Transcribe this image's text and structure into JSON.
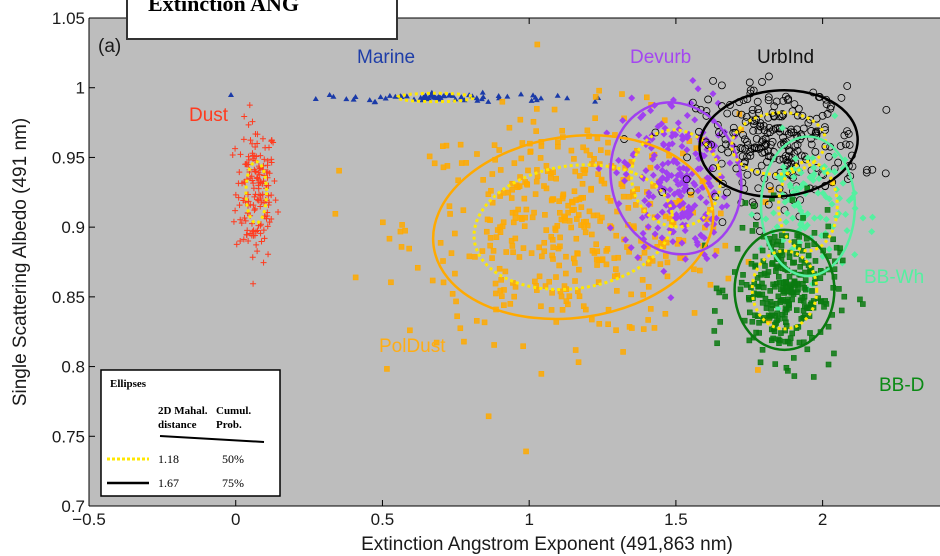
{
  "chart_data": {
    "type": "scatter",
    "title": "Extinction ANG",
    "panel_label": "(a)",
    "xlabel": "Extinction Angstrom Exponent (491,863 nm)",
    "ylabel": "Single Scattering Albedo (491 nm)",
    "xlim": [
      -0.5,
      2.4
    ],
    "ylim": [
      0.7,
      1.05
    ],
    "xticks": [
      -0.5,
      0,
      0.5,
      1,
      1.5,
      2
    ],
    "xtick_labels": [
      "−0.5",
      "0",
      "0.5",
      "1",
      "1.5",
      "2"
    ],
    "yticks": [
      0.7,
      0.75,
      0.8,
      0.85,
      0.9,
      0.95,
      1,
      1.05
    ],
    "ytick_labels": [
      "0.7",
      "0.75",
      "0.8",
      "0.85",
      "0.9",
      "0.95",
      "1",
      "1.05"
    ],
    "grid": false,
    "plot_background": "#bdbdbd",
    "series": [
      {
        "name": "Dust",
        "color": "#ff3b1f",
        "marker": "plus",
        "label_color": "#ff3b1f",
        "center": [
          0.07,
          0.925
        ],
        "spread": [
          0.035,
          0.025
        ],
        "n": 160,
        "ellipse50": {
          "rx": 0.035,
          "ry": 0.022,
          "angle": 0
        }
      },
      {
        "name": "Marine",
        "color": "#1a3aa8",
        "marker": "triangle",
        "label_color": "#1f3ea8",
        "center": [
          0.68,
          0.993
        ],
        "spread": [
          0.2,
          0.0015
        ],
        "n": 70,
        "ellipse50": {
          "rx": 0.13,
          "ry": 0.003,
          "angle": 0
        }
      },
      {
        "name": "PolDust",
        "color": "#ffaa00",
        "marker": "square",
        "label_color": "#ffad14",
        "center": [
          1.15,
          0.9
        ],
        "spread": [
          0.28,
          0.04
        ],
        "n": 420,
        "ellipse50": {
          "rx": 0.34,
          "ry": 0.044,
          "angle": -8
        },
        "ellipse75": {
          "rx": 0.48,
          "ry": 0.065,
          "angle": -8
        }
      },
      {
        "name": "Devurb",
        "color": "#a040f0",
        "marker": "diamond",
        "label_color": "#a447f0",
        "center": [
          1.5,
          0.935
        ],
        "spread": [
          0.09,
          0.03
        ],
        "n": 220,
        "ellipse50": {
          "rx": 0.15,
          "ry": 0.035,
          "angle": -15
        },
        "ellipse75": {
          "rx": 0.22,
          "ry": 0.055,
          "angle": -15
        }
      },
      {
        "name": "UrbInd",
        "color": "#000000",
        "marker": "circle",
        "label_color": "#111111",
        "center": [
          1.85,
          0.96
        ],
        "spread": [
          0.14,
          0.02
        ],
        "n": 260,
        "ellipse50": {
          "rx": 0.16,
          "ry": 0.022,
          "angle": -5
        },
        "ellipse75": {
          "rx": 0.27,
          "ry": 0.038,
          "angle": -5
        }
      },
      {
        "name": "BB-WhiteSmoke",
        "color": "#55f0a0",
        "marker": "diamond",
        "label_color": "#55f0a0",
        "center": [
          1.95,
          0.915
        ],
        "spread": [
          0.08,
          0.025
        ],
        "n": 110,
        "ellipse50": {
          "rx": 0.1,
          "ry": 0.032,
          "angle": 0
        },
        "ellipse75": {
          "rx": 0.16,
          "ry": 0.05,
          "angle": 0
        }
      },
      {
        "name": "BB-Dark",
        "color": "#0a7a10",
        "marker": "square",
        "label_color": "#0a8a14",
        "center": [
          1.87,
          0.855
        ],
        "spread": [
          0.09,
          0.025
        ],
        "n": 280,
        "ellipse50": {
          "rx": 0.11,
          "ry": 0.028,
          "angle": 0
        },
        "ellipse75": {
          "rx": 0.17,
          "ry": 0.043,
          "angle": 0
        }
      }
    ],
    "visible_group_labels": [
      "Dust",
      "Marine",
      "PolDust",
      "Devurb",
      "UrbInd",
      "BB-Wh",
      "BB-D"
    ],
    "legend": {
      "title": "Ellipses",
      "col1_header": [
        "2D Mahal.",
        "distance"
      ],
      "col2_header": [
        "Cumul.",
        "Prob."
      ],
      "rows": [
        {
          "style": "dotted-yellow",
          "distance": "1.18",
          "prob": "50%"
        },
        {
          "style": "solid-black",
          "distance": "1.67",
          "prob": "75%"
        }
      ],
      "placement": "bottom-left"
    }
  }
}
